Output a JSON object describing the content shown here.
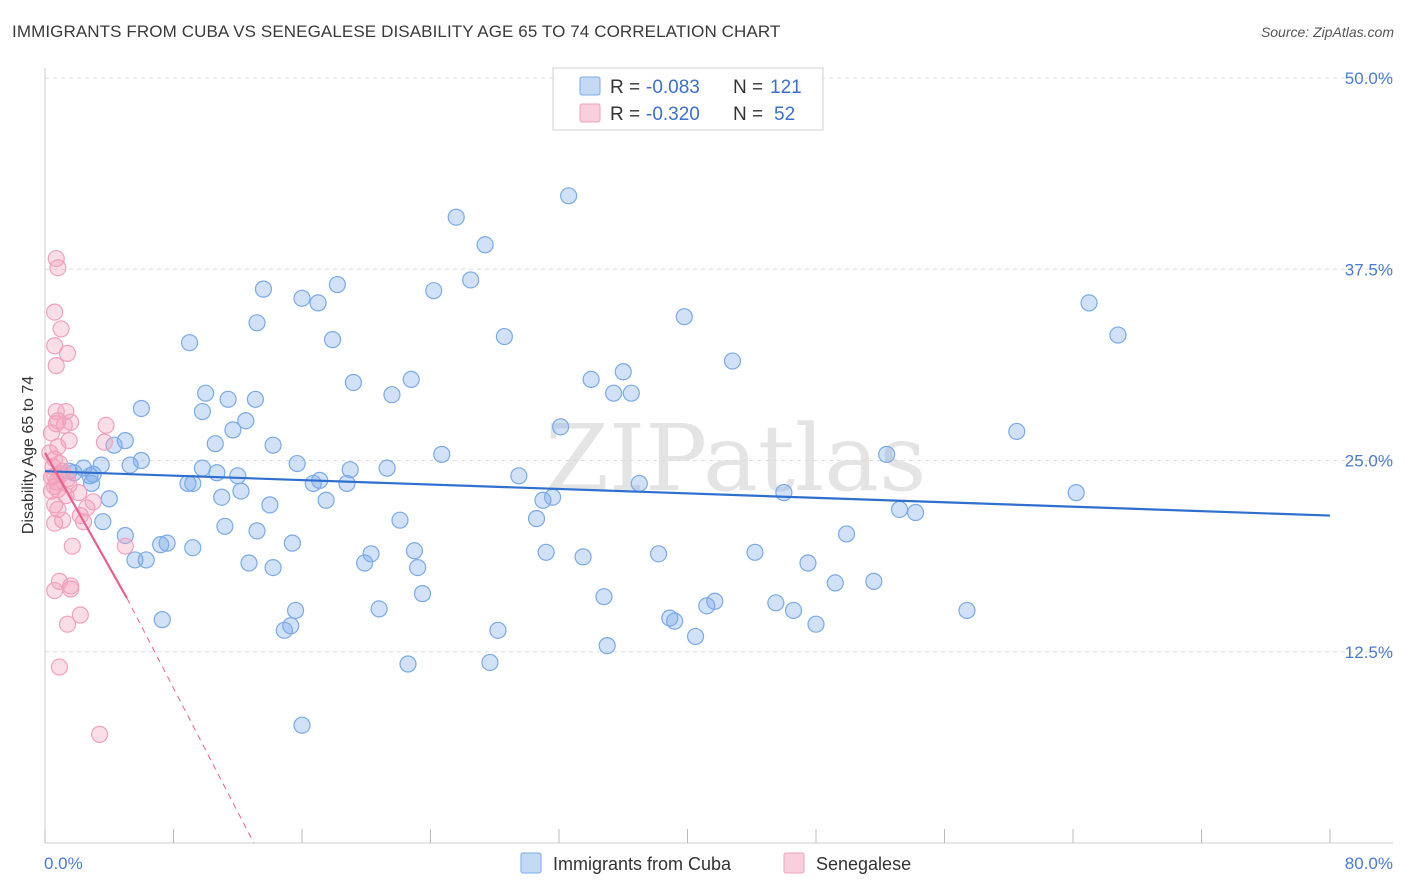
{
  "title": "IMMIGRANTS FROM CUBA VS SENEGALESE DISABILITY AGE 65 TO 74 CORRELATION CHART",
  "source": "Source: ZipAtlas.com",
  "watermark": "ZIPatlas",
  "colors": {
    "cuba": "#7aaae8",
    "cuba_line": "#2f6fcf",
    "senegal": "#f2a0bb",
    "senegal_line": "#e8608f",
    "grid": "#dddddd",
    "axis_text": "#4a7bd0"
  },
  "chart_data": {
    "type": "scatter",
    "title": "IMMIGRANTS FROM CUBA VS SENEGALESE DISABILITY AGE 65 TO 74 CORRELATION CHART",
    "xlabel": "",
    "ylabel": "Disability Age 65 to 74",
    "xlim": [
      0,
      80
    ],
    "ylim": [
      0,
      50
    ],
    "x_tick_labels": [
      "0.0%",
      "80.0%"
    ],
    "y_ticks": [
      12.5,
      25.0,
      37.5,
      50.0
    ],
    "y_tick_labels": [
      "12.5%",
      "25.0%",
      "37.5%",
      "50.0%"
    ],
    "legend": {
      "entries": [
        {
          "r_label": "R =",
          "r_value": "-0.083",
          "n_label": "N =",
          "n_value": "121"
        },
        {
          "r_label": "R =",
          "r_value": "-0.320",
          "n_label": "N =",
          "n_value": "52"
        }
      ]
    },
    "series": [
      {
        "name": "Immigrants from Cuba",
        "trend": {
          "x0": 0,
          "y0": 24.3,
          "x1": 80,
          "y1": 21.4
        },
        "points": [
          [
            2.4,
            24.5
          ],
          [
            1.8,
            24.2
          ],
          [
            3.0,
            24.1
          ],
          [
            2.8,
            24.0
          ],
          [
            1.5,
            24.3
          ],
          [
            3.5,
            24.7
          ],
          [
            2.9,
            23.5
          ],
          [
            4.0,
            22.5
          ],
          [
            3.6,
            21.0
          ],
          [
            5.0,
            26.3
          ],
          [
            4.3,
            26.0
          ],
          [
            5.3,
            24.7
          ],
          [
            6.0,
            25.0
          ],
          [
            6.0,
            28.4
          ],
          [
            5.0,
            20.1
          ],
          [
            5.6,
            18.5
          ],
          [
            6.3,
            18.5
          ],
          [
            7.2,
            19.5
          ],
          [
            7.6,
            19.6
          ],
          [
            7.3,
            14.6
          ],
          [
            9.0,
            32.7
          ],
          [
            10.0,
            29.4
          ],
          [
            9.8,
            28.2
          ],
          [
            10.7,
            24.2
          ],
          [
            11.4,
            29.0
          ],
          [
            10.6,
            26.1
          ],
          [
            9.8,
            24.5
          ],
          [
            9.2,
            23.5
          ],
          [
            8.9,
            23.5
          ],
          [
            9.2,
            19.3
          ],
          [
            11.2,
            20.7
          ],
          [
            11.0,
            22.6
          ],
          [
            12.2,
            23.0
          ],
          [
            12.0,
            24.0
          ],
          [
            11.7,
            27.0
          ],
          [
            12.5,
            27.6
          ],
          [
            13.1,
            29.0
          ],
          [
            12.7,
            18.3
          ],
          [
            13.2,
            20.4
          ],
          [
            13.2,
            34.0
          ],
          [
            13.6,
            36.2
          ],
          [
            14.0,
            22.1
          ],
          [
            14.2,
            26.0
          ],
          [
            14.2,
            18.0
          ],
          [
            15.7,
            24.8
          ],
          [
            15.4,
            19.6
          ],
          [
            14.9,
            13.9
          ],
          [
            15.3,
            14.2
          ],
          [
            15.6,
            15.2
          ],
          [
            16.0,
            7.7
          ],
          [
            16.0,
            35.6
          ],
          [
            17.0,
            35.3
          ],
          [
            16.7,
            23.5
          ],
          [
            17.1,
            23.7
          ],
          [
            17.5,
            22.4
          ],
          [
            18.2,
            36.5
          ],
          [
            17.9,
            32.9
          ],
          [
            18.8,
            23.5
          ],
          [
            19.0,
            24.4
          ],
          [
            19.2,
            30.1
          ],
          [
            19.9,
            18.3
          ],
          [
            20.3,
            18.9
          ],
          [
            20.8,
            15.3
          ],
          [
            21.3,
            24.5
          ],
          [
            21.6,
            29.3
          ],
          [
            22.1,
            21.1
          ],
          [
            22.6,
            11.7
          ],
          [
            22.8,
            30.3
          ],
          [
            23.0,
            19.1
          ],
          [
            23.2,
            18.0
          ],
          [
            23.5,
            16.3
          ],
          [
            24.2,
            36.1
          ],
          [
            24.7,
            25.4
          ],
          [
            25.6,
            40.9
          ],
          [
            26.5,
            36.8
          ],
          [
            27.4,
            39.1
          ],
          [
            27.7,
            11.8
          ],
          [
            28.2,
            13.9
          ],
          [
            28.6,
            33.1
          ],
          [
            29.5,
            24.0
          ],
          [
            30.6,
            21.2
          ],
          [
            31.0,
            22.4
          ],
          [
            31.2,
            19.0
          ],
          [
            31.6,
            22.6
          ],
          [
            32.1,
            27.2
          ],
          [
            32.6,
            42.3
          ],
          [
            33.5,
            18.7
          ],
          [
            34.0,
            30.3
          ],
          [
            34.8,
            16.1
          ],
          [
            35.0,
            12.9
          ],
          [
            35.4,
            29.4
          ],
          [
            36.0,
            30.8
          ],
          [
            36.5,
            29.4
          ],
          [
            37.0,
            23.5
          ],
          [
            38.2,
            18.9
          ],
          [
            38.9,
            14.7
          ],
          [
            39.2,
            14.5
          ],
          [
            39.8,
            34.4
          ],
          [
            40.5,
            13.5
          ],
          [
            41.2,
            15.5
          ],
          [
            41.7,
            15.8
          ],
          [
            42.8,
            31.5
          ],
          [
            44.2,
            19.0
          ],
          [
            45.5,
            15.7
          ],
          [
            46.0,
            22.9
          ],
          [
            46.6,
            15.2
          ],
          [
            47.5,
            18.3
          ],
          [
            48.0,
            14.3
          ],
          [
            49.2,
            17.0
          ],
          [
            49.9,
            20.2
          ],
          [
            51.6,
            17.1
          ],
          [
            52.4,
            25.4
          ],
          [
            53.2,
            21.8
          ],
          [
            54.2,
            21.6
          ],
          [
            57.4,
            15.2
          ],
          [
            60.5,
            26.9
          ],
          [
            64.2,
            22.9
          ],
          [
            65.0,
            35.3
          ],
          [
            66.8,
            33.2
          ]
        ]
      },
      {
        "name": "Senegalese",
        "trend": {
          "x0": 0,
          "y0": 25.5,
          "x1": 5.1,
          "y1": 16.0,
          "dash_x1": 13.0,
          "dash_y1": 0.0
        },
        "points": [
          [
            0.4,
            23.9
          ],
          [
            0.5,
            24.6
          ],
          [
            0.6,
            23.3
          ],
          [
            0.8,
            23.1
          ],
          [
            1.0,
            24.1
          ],
          [
            0.6,
            24.0
          ],
          [
            0.7,
            23.6
          ],
          [
            1.1,
            24.3
          ],
          [
            0.8,
            25.9
          ],
          [
            0.3,
            25.5
          ],
          [
            0.6,
            25.1
          ],
          [
            0.9,
            24.8
          ],
          [
            1.3,
            22.7
          ],
          [
            1.5,
            23.4
          ],
          [
            0.7,
            27.4
          ],
          [
            1.2,
            27.3
          ],
          [
            0.8,
            27.6
          ],
          [
            0.7,
            28.2
          ],
          [
            1.6,
            27.5
          ],
          [
            1.3,
            28.2
          ],
          [
            1.5,
            26.3
          ],
          [
            0.4,
            26.8
          ],
          [
            0.7,
            31.2
          ],
          [
            0.6,
            32.5
          ],
          [
            1.4,
            32.0
          ],
          [
            1.0,
            33.6
          ],
          [
            0.6,
            34.7
          ],
          [
            0.8,
            37.6
          ],
          [
            0.7,
            38.2
          ],
          [
            3.7,
            26.2
          ],
          [
            3.8,
            27.3
          ],
          [
            1.4,
            23.8
          ],
          [
            2.1,
            22.9
          ],
          [
            2.4,
            21.0
          ],
          [
            2.2,
            21.4
          ],
          [
            0.6,
            22.1
          ],
          [
            0.8,
            21.8
          ],
          [
            1.1,
            21.1
          ],
          [
            0.6,
            20.9
          ],
          [
            1.7,
            19.4
          ],
          [
            2.6,
            21.9
          ],
          [
            1.6,
            16.8
          ],
          [
            0.9,
            17.1
          ],
          [
            0.6,
            16.5
          ],
          [
            1.6,
            16.6
          ],
          [
            2.2,
            14.9
          ],
          [
            1.4,
            14.3
          ],
          [
            0.9,
            11.5
          ],
          [
            3.4,
            7.1
          ],
          [
            5.0,
            19.4
          ],
          [
            3.0,
            22.3
          ],
          [
            0.4,
            23.0
          ]
        ]
      }
    ]
  },
  "bottom_legend": {
    "items": [
      "Immigrants from Cuba",
      "Senegalese"
    ]
  }
}
